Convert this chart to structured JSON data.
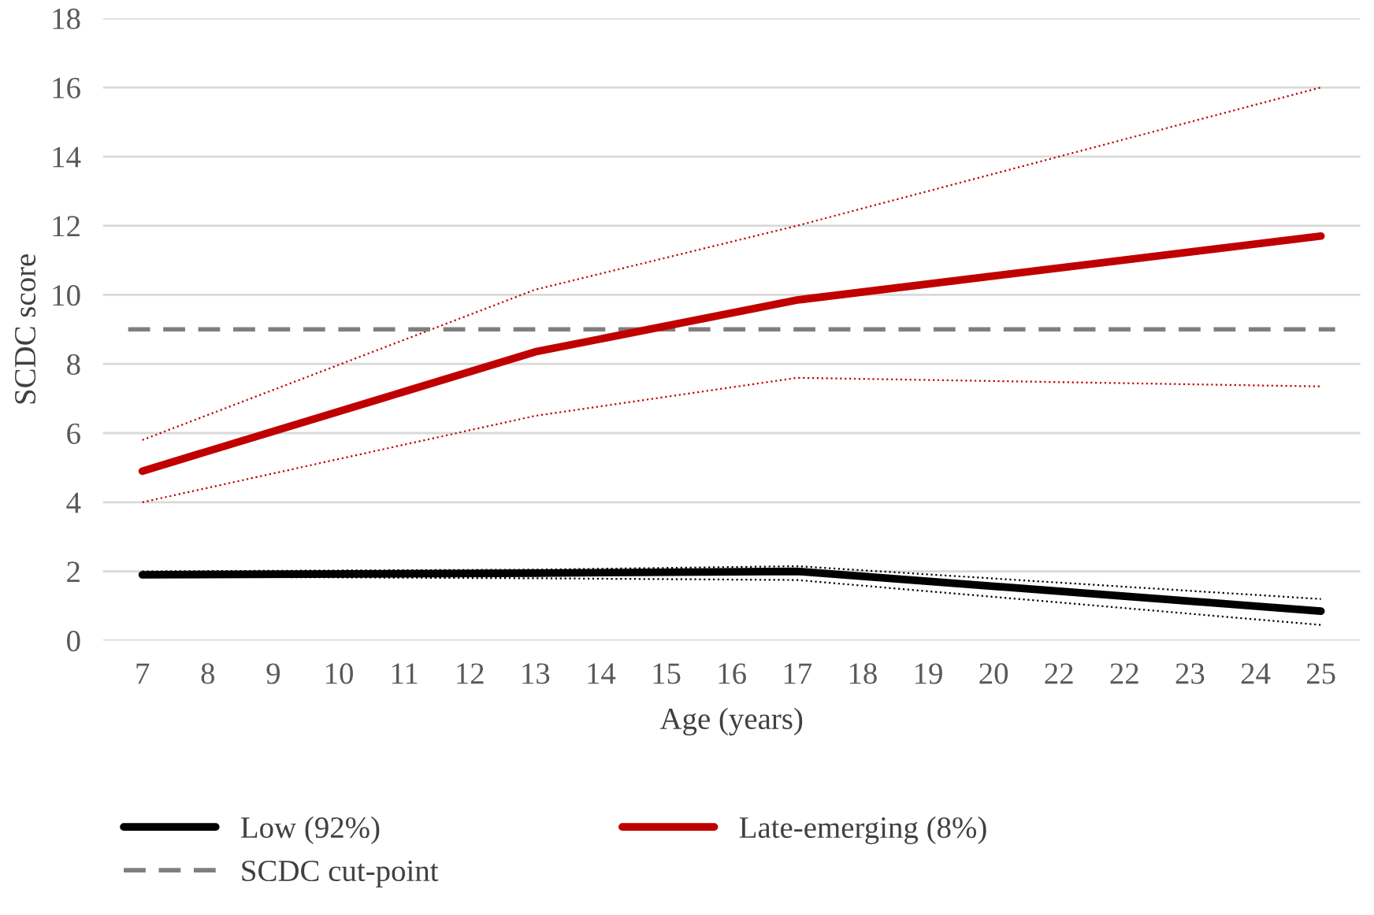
{
  "chart_data": {
    "type": "line",
    "xlabel": "Age (years)",
    "ylabel": "SCDC score",
    "categories": [
      "7",
      "8",
      "9",
      "10",
      "11",
      "12",
      "13",
      "14",
      "15",
      "16",
      "17",
      "18",
      "19",
      "20",
      "22",
      "22",
      "23",
      "24",
      "25"
    ],
    "series": [
      {
        "name": "Low (92%)",
        "color": "#000000",
        "values": [
          1.9,
          null,
          null,
          null,
          null,
          null,
          1.95,
          null,
          null,
          null,
          2.0,
          null,
          null,
          null,
          null,
          null,
          null,
          null,
          0.85
        ]
      },
      {
        "name": "Late-emerging (8%)",
        "color": "#c00000",
        "values": [
          4.9,
          null,
          null,
          null,
          null,
          null,
          8.35,
          null,
          null,
          null,
          9.85,
          null,
          null,
          null,
          null,
          null,
          null,
          null,
          11.7
        ]
      },
      {
        "color": "#000000",
        "line_style": "dotted",
        "values": [
          1.85,
          null,
          null,
          null,
          null,
          null,
          1.8,
          null,
          null,
          null,
          1.75,
          null,
          null,
          null,
          null,
          null,
          null,
          null,
          0.45
        ]
      },
      {
        "color": "#000000",
        "line_style": "dotted",
        "values": [
          2.0,
          null,
          null,
          null,
          null,
          null,
          2.05,
          null,
          null,
          null,
          2.15,
          null,
          null,
          null,
          null,
          null,
          null,
          null,
          1.2
        ]
      },
      {
        "color": "#c00000",
        "line_style": "dotted",
        "values": [
          4.0,
          null,
          null,
          null,
          null,
          null,
          6.5,
          null,
          null,
          null,
          7.6,
          null,
          null,
          null,
          null,
          null,
          null,
          null,
          7.35
        ]
      },
      {
        "color": "#c00000",
        "line_style": "dotted",
        "values": [
          5.8,
          null,
          null,
          null,
          null,
          null,
          10.15,
          null,
          null,
          null,
          12.0,
          null,
          null,
          null,
          null,
          null,
          null,
          null,
          16.0
        ]
      }
    ],
    "ref_lines": [
      {
        "axis": "y",
        "value": 9,
        "label": "SCDC cut-point",
        "color": "#7f7f7f",
        "line_style": "dashed"
      }
    ],
    "ylim": [
      0,
      18
    ],
    "yticks": [
      0,
      2,
      4,
      6,
      8,
      10,
      12,
      14,
      16,
      18
    ],
    "grid": "y",
    "legend": "bottom",
    "marker": "none",
    "line_style": "solid"
  }
}
